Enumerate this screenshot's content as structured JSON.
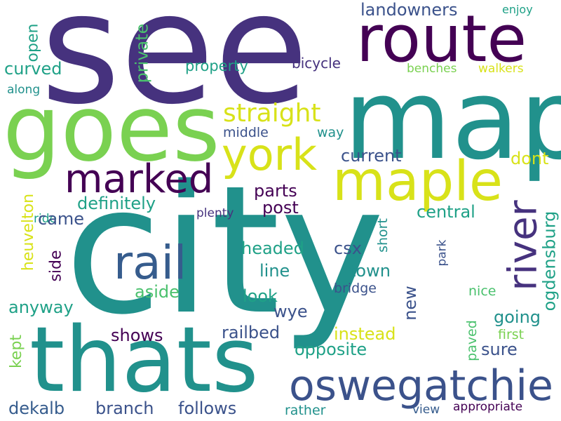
{
  "colors": {
    "background": "#ffffff",
    "deep_purple": "#440154",
    "indigo": "#46327e",
    "slate_blue": "#365c8d",
    "steel_blue": "#3b528b",
    "teal": "#21918c",
    "sea_green": "#1fa187",
    "green": "#4ac16d",
    "light_green": "#7ad151",
    "yellow": "#d8e219",
    "bright_yellow": "#fde725"
  },
  "words": [
    "see",
    "city",
    "map",
    "goes",
    "route",
    "thats",
    "oswegatchie",
    "maple",
    "york",
    "river",
    "rail",
    "marked",
    "straight",
    "landowners",
    "private",
    "open",
    "curved",
    "property",
    "bicycle",
    "enjoy",
    "benches",
    "walkers",
    "along",
    "middle",
    "way",
    "current",
    "dont",
    "definitely",
    "parts",
    "post",
    "central",
    "ogdensburg",
    "heuvelton",
    "ride",
    "plenty",
    "came",
    "headed",
    "csx",
    "short",
    "park",
    "side",
    "line",
    "town",
    "aside",
    "look",
    "bridge",
    "nice",
    "new",
    "anyway",
    "wye",
    "going",
    "kept",
    "shows",
    "railbed",
    "instead",
    "first",
    "opposite",
    "paved",
    "sure",
    "dekalb",
    "branch",
    "follows",
    "rather",
    "view",
    "appropriate"
  ]
}
